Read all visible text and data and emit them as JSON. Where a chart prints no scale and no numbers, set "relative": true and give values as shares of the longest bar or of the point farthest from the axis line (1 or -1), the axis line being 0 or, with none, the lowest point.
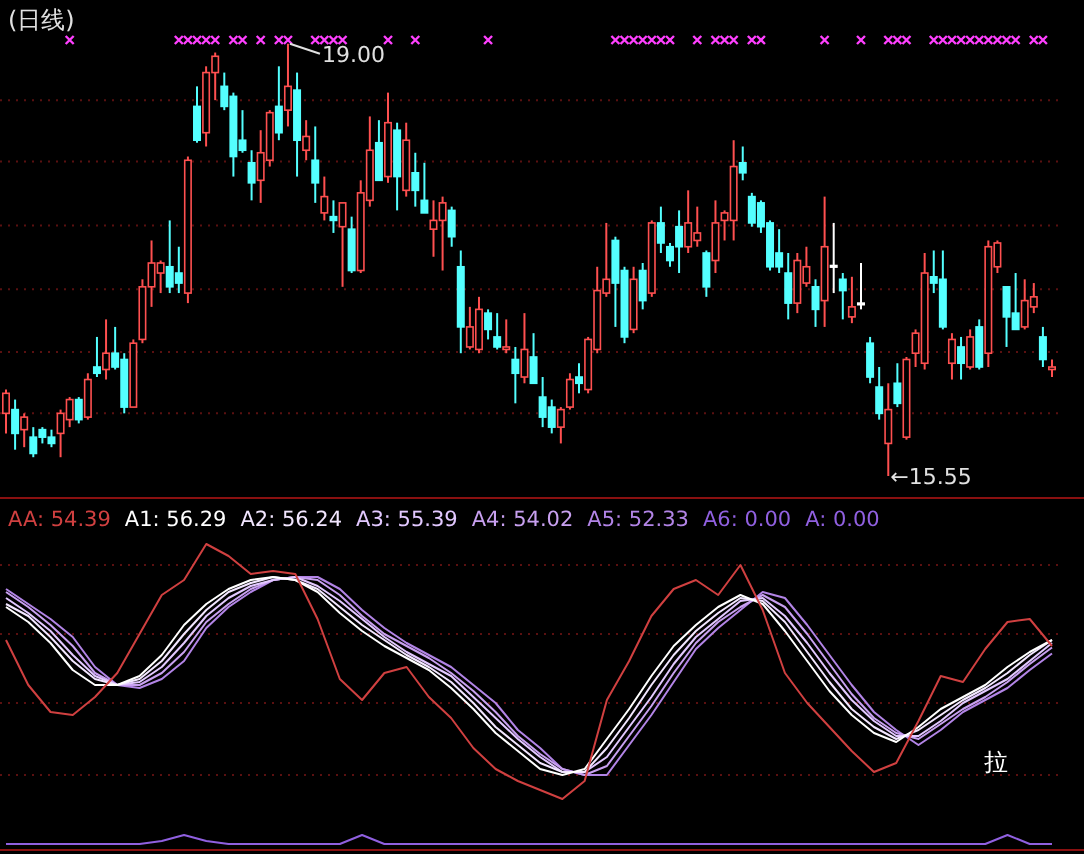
{
  "chart_data": [
    {
      "type": "candlestick",
      "title": "(日线)",
      "ref_lines": [
        {
          "axis": "y",
          "value": 18.55,
          "color": "#5a1010",
          "line_style": "dotted"
        },
        {
          "axis": "y",
          "value": 18.06,
          "color": "#5a1010",
          "line_style": "dotted"
        },
        {
          "axis": "y",
          "value": 17.55,
          "color": "#5a1010",
          "line_style": "dotted"
        },
        {
          "axis": "y",
          "value": 17.04,
          "color": "#5a1010",
          "line_style": "dotted"
        },
        {
          "axis": "y",
          "value": 16.54,
          "color": "#5a1010",
          "line_style": "dotted"
        },
        {
          "axis": "y",
          "value": 16.05,
          "color": "#5a1010",
          "line_style": "dotted"
        }
      ],
      "categories": [
        null,
        null,
        null,
        null,
        null,
        null,
        null,
        null,
        null,
        null,
        null,
        null,
        null,
        null,
        null,
        null,
        null,
        null,
        null,
        null,
        null,
        null,
        null,
        null,
        null,
        null,
        null,
        null,
        null,
        null,
        null,
        null,
        null,
        null,
        null,
        null,
        null,
        null,
        null,
        null,
        null,
        null,
        null,
        null,
        null,
        null,
        null,
        null,
        null,
        null,
        null,
        null,
        null,
        null,
        null,
        null,
        null,
        null,
        null,
        null,
        null,
        null,
        null,
        null,
        null,
        null,
        null,
        null,
        null,
        null,
        null,
        null,
        null,
        null,
        null,
        null,
        null,
        null,
        null,
        null,
        null,
        null,
        null,
        null,
        null,
        null,
        null,
        null,
        null,
        null,
        null,
        null,
        null,
        null,
        null,
        null,
        null,
        null,
        null,
        null,
        null,
        null,
        null,
        null,
        null,
        null,
        null,
        null,
        null,
        null,
        null,
        null,
        null,
        null,
        null,
        null
      ],
      "ohlc": [
        [
          16.05,
          16.24,
          15.89,
          16.21
        ],
        [
          16.08,
          16.16,
          15.76,
          15.89
        ],
        [
          15.92,
          16.05,
          15.78,
          16.02
        ],
        [
          15.86,
          15.94,
          15.7,
          15.73
        ],
        [
          15.92,
          15.94,
          15.81,
          15.86
        ],
        [
          15.86,
          15.92,
          15.78,
          15.81
        ],
        [
          15.89,
          16.08,
          15.7,
          16.05
        ],
        [
          16.0,
          16.18,
          15.94,
          16.16
        ],
        [
          16.16,
          16.18,
          15.97,
          16.0
        ],
        [
          16.02,
          16.37,
          16.0,
          16.32
        ],
        [
          16.42,
          16.66,
          16.34,
          16.37
        ],
        [
          16.4,
          16.8,
          16.32,
          16.53
        ],
        [
          16.53,
          16.74,
          16.4,
          16.42
        ],
        [
          16.48,
          16.53,
          16.05,
          16.1
        ],
        [
          16.1,
          16.64,
          16.1,
          16.61
        ],
        [
          16.64,
          17.12,
          16.61,
          17.06
        ],
        [
          17.06,
          17.43,
          16.9,
          17.25
        ],
        [
          17.17,
          17.27,
          17.01,
          17.25
        ],
        [
          17.22,
          17.59,
          17.01,
          17.06
        ],
        [
          17.17,
          17.38,
          17.01,
          17.09
        ],
        [
          17.01,
          18.1,
          16.93,
          18.07
        ],
        [
          18.5,
          18.66,
          18.21,
          18.23
        ],
        [
          18.29,
          18.82,
          18.18,
          18.77
        ],
        [
          18.77,
          18.93,
          18.55,
          18.9
        ],
        [
          18.66,
          18.77,
          18.47,
          18.5
        ],
        [
          18.58,
          18.61,
          17.94,
          18.1
        ],
        [
          18.23,
          18.47,
          18.13,
          18.15
        ],
        [
          18.05,
          18.15,
          17.75,
          17.89
        ],
        [
          17.91,
          18.31,
          17.73,
          18.13
        ],
        [
          18.07,
          18.47,
          18.02,
          18.45
        ],
        [
          18.5,
          18.82,
          18.23,
          18.29
        ],
        [
          18.47,
          19.0,
          18.34,
          18.66
        ],
        [
          18.63,
          18.77,
          17.94,
          18.23
        ],
        [
          18.15,
          18.39,
          18.07,
          18.26
        ],
        [
          18.07,
          18.34,
          17.73,
          17.89
        ],
        [
          17.65,
          17.94,
          17.59,
          17.78
        ],
        [
          17.62,
          17.75,
          17.49,
          17.59
        ],
        [
          17.54,
          17.73,
          17.06,
          17.73
        ],
        [
          17.52,
          17.62,
          17.17,
          17.19
        ],
        [
          17.19,
          17.91,
          17.17,
          17.81
        ],
        [
          17.75,
          18.42,
          17.7,
          18.15
        ],
        [
          18.21,
          18.39,
          17.91,
          17.91
        ],
        [
          17.94,
          18.61,
          17.89,
          18.37
        ],
        [
          18.31,
          18.37,
          17.67,
          17.94
        ],
        [
          17.83,
          18.37,
          17.78,
          18.23
        ],
        [
          17.97,
          18.13,
          17.7,
          17.83
        ],
        [
          17.75,
          18.05,
          17.65,
          17.65
        ],
        [
          17.52,
          17.75,
          17.3,
          17.59
        ],
        [
          17.59,
          17.78,
          17.19,
          17.73
        ],
        [
          17.67,
          17.7,
          17.38,
          17.46
        ],
        [
          17.22,
          17.35,
          16.53,
          16.74
        ],
        [
          16.58,
          16.9,
          16.56,
          16.74
        ],
        [
          16.56,
          16.98,
          16.53,
          16.88
        ],
        [
          16.85,
          16.88,
          16.64,
          16.72
        ],
        [
          16.66,
          16.85,
          16.56,
          16.58
        ],
        [
          16.56,
          16.8,
          16.53,
          16.58
        ],
        [
          16.48,
          16.58,
          16.13,
          16.37
        ],
        [
          16.34,
          16.85,
          16.29,
          16.56
        ],
        [
          16.5,
          16.69,
          16.29,
          16.29
        ],
        [
          16.18,
          16.34,
          15.94,
          16.02
        ],
        [
          16.1,
          16.16,
          15.89,
          15.94
        ],
        [
          15.94,
          16.1,
          15.81,
          16.08
        ],
        [
          16.1,
          16.37,
          16.08,
          16.32
        ],
        [
          16.34,
          16.45,
          16.21,
          16.29
        ],
        [
          16.24,
          16.66,
          16.21,
          16.64
        ],
        [
          16.56,
          17.22,
          16.53,
          17.03
        ],
        [
          17.01,
          17.57,
          16.98,
          17.12
        ],
        [
          17.43,
          17.46,
          16.74,
          17.09
        ],
        [
          17.19,
          17.22,
          16.61,
          16.66
        ],
        [
          16.72,
          17.22,
          16.69,
          17.12
        ],
        [
          17.19,
          17.25,
          16.88,
          16.95
        ],
        [
          17.01,
          17.59,
          16.98,
          17.57
        ],
        [
          17.57,
          17.7,
          17.33,
          17.41
        ],
        [
          17.38,
          17.41,
          17.22,
          17.27
        ],
        [
          17.54,
          17.67,
          17.17,
          17.38
        ],
        [
          17.38,
          17.83,
          17.33,
          17.57
        ],
        [
          17.43,
          17.7,
          17.38,
          17.49
        ],
        [
          17.33,
          17.35,
          16.98,
          17.06
        ],
        [
          17.27,
          17.75,
          17.17,
          17.57
        ],
        [
          17.59,
          17.67,
          17.43,
          17.65
        ],
        [
          17.59,
          18.23,
          17.43,
          18.02
        ],
        [
          18.05,
          18.18,
          17.91,
          17.97
        ],
        [
          17.78,
          17.81,
          17.54,
          17.57
        ],
        [
          17.73,
          17.75,
          17.49,
          17.54
        ],
        [
          17.57,
          17.59,
          17.19,
          17.22
        ],
        [
          17.33,
          17.52,
          17.17,
          17.22
        ],
        [
          17.17,
          17.33,
          16.8,
          16.93
        ],
        [
          16.93,
          17.33,
          16.85,
          17.27
        ],
        [
          17.09,
          17.38,
          17.06,
          17.22
        ],
        [
          17.06,
          17.12,
          16.74,
          16.88
        ],
        [
          16.95,
          17.78,
          16.74,
          17.38
        ],
        [
          17.23,
          17.57,
          17.01,
          17.23
        ],
        [
          17.12,
          17.17,
          16.8,
          17.03
        ],
        [
          16.82,
          17.14,
          16.77,
          16.9
        ],
        [
          16.93,
          17.25,
          16.88,
          16.93
        ],
        [
          16.61,
          16.66,
          16.29,
          16.34
        ],
        [
          16.26,
          16.42,
          16.0,
          16.05
        ],
        [
          15.81,
          16.29,
          15.55,
          16.08
        ],
        [
          16.29,
          16.45,
          16.1,
          16.13
        ],
        [
          15.86,
          16.5,
          15.84,
          16.48
        ],
        [
          16.53,
          16.72,
          16.42,
          16.69
        ],
        [
          16.45,
          17.33,
          16.4,
          17.17
        ],
        [
          17.14,
          17.35,
          17.01,
          17.09
        ],
        [
          17.12,
          17.35,
          16.72,
          16.74
        ],
        [
          16.45,
          16.69,
          16.32,
          16.64
        ],
        [
          16.58,
          16.66,
          16.32,
          16.45
        ],
        [
          16.42,
          16.72,
          16.4,
          16.66
        ],
        [
          16.74,
          16.8,
          16.4,
          16.42
        ],
        [
          16.53,
          17.43,
          16.42,
          17.38
        ],
        [
          17.22,
          17.43,
          17.17,
          17.41
        ],
        [
          17.06,
          17.06,
          16.58,
          16.82
        ],
        [
          16.85,
          17.17,
          16.72,
          16.72
        ],
        [
          16.74,
          17.12,
          16.72,
          16.95
        ],
        [
          16.9,
          17.09,
          16.85,
          16.98
        ],
        [
          16.66,
          16.74,
          16.42,
          16.48
        ],
        [
          16.4,
          16.48,
          16.34,
          16.42
        ]
      ],
      "colors": [
        "#ff5050",
        "#54ffff",
        "#ff5050",
        "#54ffff",
        "#54ffff",
        "#54ffff",
        "#ff5050",
        "#ff5050",
        "#54ffff",
        "#ff5050",
        "#54ffff",
        "#ff5050",
        "#54ffff",
        "#54ffff",
        "#ff5050",
        "#ff5050",
        "#ff5050",
        "#ff5050",
        "#54ffff",
        "#54ffff",
        "#ff5050",
        "#54ffff",
        "#ff5050",
        "#ff5050",
        "#54ffff",
        "#54ffff",
        "#54ffff",
        "#54ffff",
        "#ff5050",
        "#ff5050",
        "#54ffff",
        "#ff5050",
        "#54ffff",
        "#ff5050",
        "#54ffff",
        "#ff5050",
        "#54ffff",
        "#ff5050",
        "#54ffff",
        "#ff5050",
        "#ff5050",
        "#54ffff",
        "#ff5050",
        "#54ffff",
        "#ff5050",
        "#54ffff",
        "#54ffff",
        "#ff5050",
        "#ff5050",
        "#54ffff",
        "#54ffff",
        "#ff5050",
        "#ff5050",
        "#54ffff",
        "#54ffff",
        "#ff5050",
        "#54ffff",
        "#ff5050",
        "#54ffff",
        "#54ffff",
        "#54ffff",
        "#ff5050",
        "#ff5050",
        "#54ffff",
        "#ff5050",
        "#ff5050",
        "#ff5050",
        "#54ffff",
        "#54ffff",
        "#ff5050",
        "#54ffff",
        "#ff5050",
        "#54ffff",
        "#54ffff",
        "#54ffff",
        "#ff5050",
        "#ff5050",
        "#54ffff",
        "#ff5050",
        "#ff5050",
        "#ff5050",
        "#54ffff",
        "#54ffff",
        "#54ffff",
        "#54ffff",
        "#54ffff",
        "#54ffff",
        "#ff5050",
        "#ff5050",
        "#54ffff",
        "#ff5050",
        "#ffffff",
        "#54ffff",
        "#ff5050",
        "#ffffff",
        "#54ffff",
        "#54ffff",
        "#ff5050",
        "#54ffff",
        "#ff5050",
        "#ff5050",
        "#ff5050",
        "#54ffff",
        "#54ffff",
        "#ff5050",
        "#54ffff",
        "#ff5050",
        "#54ffff",
        "#ff5050",
        "#ff5050",
        "#54ffff",
        "#54ffff",
        "#ff5050",
        "#ff5050",
        "#54ffff",
        "#ff5050"
      ],
      "series": [
        {
          "type": "scatter",
          "marker": "cross",
          "color": "#ff40ff",
          "values": [
            null,
            null,
            null,
            null,
            null,
            null,
            null,
            19.03,
            null,
            null,
            null,
            null,
            null,
            null,
            null,
            null,
            null,
            null,
            null,
            19.03,
            19.03,
            19.03,
            19.03,
            19.03,
            null,
            19.03,
            19.03,
            null,
            19.03,
            null,
            19.03,
            19.03,
            null,
            null,
            19.03,
            19.03,
            19.03,
            19.03,
            null,
            null,
            null,
            null,
            19.03,
            null,
            null,
            19.03,
            null,
            null,
            null,
            null,
            null,
            null,
            null,
            19.03,
            null,
            null,
            null,
            null,
            null,
            null,
            null,
            null,
            null,
            null,
            null,
            null,
            null,
            19.03,
            19.03,
            19.03,
            19.03,
            19.03,
            19.03,
            19.03,
            null,
            null,
            19.03,
            null,
            19.03,
            19.03,
            19.03,
            null,
            19.03,
            19.03,
            null,
            null,
            null,
            null,
            null,
            null,
            19.03,
            null,
            null,
            null,
            19.03,
            null,
            null,
            19.03,
            19.03,
            19.03,
            null,
            null,
            19.03,
            19.03,
            19.03,
            19.03,
            19.03,
            19.03,
            19.03,
            19.03,
            19.03,
            19.03,
            null,
            19.03,
            19.03,
            null
          ]
        }
      ],
      "annotations": [
        "19.00",
        "←15.55"
      ]
    },
    {
      "type": "line",
      "relative": true,
      "legend": "top left",
      "ref_lines": [
        {
          "axis": "y",
          "value": 0.93,
          "color": "#5a1010",
          "line_style": "dotted"
        },
        {
          "axis": "y",
          "value": 0.7,
          "color": "#5a1010",
          "line_style": "dotted"
        },
        {
          "axis": "y",
          "value": 0.47,
          "color": "#5a1010",
          "line_style": "dotted"
        },
        {
          "axis": "y",
          "value": 0.23,
          "color": "#5a1010",
          "line_style": "dotted"
        }
      ],
      "categories": [
        null,
        null,
        null,
        null,
        null,
        null,
        null,
        null,
        null,
        null,
        null,
        null,
        null,
        null,
        null,
        null,
        null,
        null,
        null,
        null,
        null,
        null,
        null,
        null,
        null,
        null,
        null,
        null,
        null,
        null,
        null,
        null,
        null,
        null,
        null,
        null,
        null,
        null,
        null,
        null,
        null,
        null,
        null,
        null,
        null,
        null,
        null,
        null
      ],
      "series": [
        {
          "name": "AA: 54.39",
          "color": "#d04040",
          "values": [
            0.68,
            0.53,
            0.44,
            0.43,
            0.49,
            0.57,
            0.7,
            0.83,
            0.88,
            1.0,
            0.96,
            0.9,
            0.91,
            0.9,
            0.75,
            0.55,
            0.48,
            0.57,
            0.59,
            0.49,
            0.42,
            0.32,
            0.25,
            0.21,
            0.18,
            0.15,
            0.21,
            0.48,
            0.61,
            0.76,
            0.85,
            0.88,
            0.83,
            0.93,
            0.78,
            0.57,
            0.47,
            0.39,
            0.31,
            0.24,
            0.27,
            0.41,
            0.56,
            0.54,
            0.65,
            0.74,
            0.75,
            0.66
          ]
        },
        {
          "name": "A1: 56.29",
          "color": "#ffffff",
          "values": [
            0.79,
            0.74,
            0.67,
            0.58,
            0.53,
            0.53,
            0.56,
            0.63,
            0.73,
            0.8,
            0.85,
            0.88,
            0.89,
            0.88,
            0.84,
            0.77,
            0.71,
            0.66,
            0.62,
            0.58,
            0.52,
            0.45,
            0.37,
            0.31,
            0.25,
            0.23,
            0.25,
            0.35,
            0.45,
            0.56,
            0.66,
            0.73,
            0.79,
            0.83,
            0.8,
            0.71,
            0.61,
            0.51,
            0.43,
            0.37,
            0.34,
            0.39,
            0.45,
            0.49,
            0.53,
            0.59,
            0.64,
            0.68
          ]
        },
        {
          "name": "A2: 56.24",
          "color": "#f2e6ff",
          "values": [
            0.8,
            0.76,
            0.69,
            0.61,
            0.55,
            0.53,
            0.55,
            0.61,
            0.7,
            0.78,
            0.84,
            0.87,
            0.89,
            0.88,
            0.85,
            0.79,
            0.73,
            0.68,
            0.63,
            0.59,
            0.54,
            0.47,
            0.39,
            0.33,
            0.27,
            0.24,
            0.24,
            0.32,
            0.42,
            0.53,
            0.63,
            0.71,
            0.77,
            0.82,
            0.81,
            0.74,
            0.64,
            0.54,
            0.45,
            0.39,
            0.35,
            0.38,
            0.43,
            0.48,
            0.52,
            0.57,
            0.63,
            0.68
          ]
        },
        {
          "name": "A3: 55.39",
          "color": "#e2c8ff",
          "values": [
            0.82,
            0.77,
            0.71,
            0.63,
            0.56,
            0.53,
            0.54,
            0.59,
            0.67,
            0.76,
            0.82,
            0.86,
            0.88,
            0.89,
            0.86,
            0.81,
            0.75,
            0.69,
            0.64,
            0.6,
            0.56,
            0.49,
            0.42,
            0.35,
            0.29,
            0.24,
            0.24,
            0.29,
            0.39,
            0.49,
            0.6,
            0.69,
            0.75,
            0.81,
            0.82,
            0.76,
            0.67,
            0.57,
            0.48,
            0.41,
            0.36,
            0.36,
            0.41,
            0.47,
            0.51,
            0.55,
            0.61,
            0.67
          ]
        },
        {
          "name": "A4: 54.02",
          "color": "#c8a0f0",
          "values": [
            0.84,
            0.79,
            0.73,
            0.66,
            0.57,
            0.53,
            0.53,
            0.57,
            0.64,
            0.74,
            0.8,
            0.85,
            0.88,
            0.89,
            0.88,
            0.83,
            0.76,
            0.7,
            0.66,
            0.62,
            0.57,
            0.51,
            0.44,
            0.36,
            0.3,
            0.25,
            0.23,
            0.26,
            0.36,
            0.46,
            0.57,
            0.67,
            0.74,
            0.79,
            0.83,
            0.79,
            0.7,
            0.6,
            0.5,
            0.42,
            0.37,
            0.35,
            0.4,
            0.45,
            0.49,
            0.54,
            0.6,
            0.655
          ]
        },
        {
          "name": "A5: 52.33",
          "color": "#b284e6",
          "values": [
            0.85,
            0.8,
            0.75,
            0.69,
            0.59,
            0.53,
            0.52,
            0.55,
            0.61,
            0.72,
            0.79,
            0.84,
            0.88,
            0.89,
            0.89,
            0.85,
            0.78,
            0.72,
            0.67,
            0.63,
            0.59,
            0.53,
            0.47,
            0.38,
            0.32,
            0.25,
            0.23,
            0.23,
            0.33,
            0.43,
            0.54,
            0.65,
            0.72,
            0.78,
            0.84,
            0.82,
            0.73,
            0.63,
            0.53,
            0.44,
            0.38,
            0.33,
            0.38,
            0.44,
            0.48,
            0.52,
            0.58,
            0.635
          ]
        },
        {
          "name": "A6: 0.00",
          "color": "#9060e0",
          "values": [
            0,
            0,
            0,
            0,
            0,
            0,
            0,
            0.01,
            0.03,
            0.01,
            0,
            0,
            0,
            0,
            0,
            0,
            0.03,
            0,
            0,
            0,
            0,
            0,
            0,
            0,
            0,
            0,
            0,
            0,
            0,
            0,
            0,
            0,
            0,
            0,
            0,
            0,
            0,
            0,
            0,
            0,
            0,
            0,
            0,
            0,
            0,
            0.03,
            0,
            0
          ]
        }
      ],
      "annotations": [
        "A: 0.00",
        "拉"
      ]
    }
  ]
}
